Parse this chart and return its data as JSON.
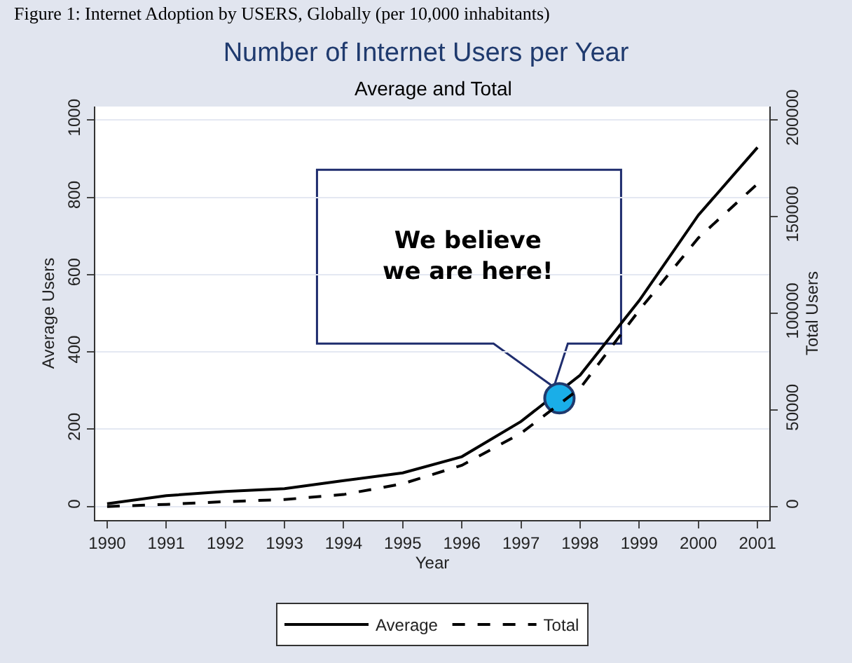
{
  "chart_data": {
    "type": "line",
    "title": "Number of Internet Users per Year",
    "subtitle": "Average and Total",
    "xlabel": "Year",
    "ylabel": "Average Users",
    "y2label": "Total Users",
    "x": [
      1990,
      1991,
      1992,
      1993,
      1994,
      1995,
      1996,
      1997,
      1998,
      1999,
      2000,
      2001
    ],
    "series": [
      {
        "name": "Average",
        "color": "#000000",
        "line_style": "solid",
        "values": [
          7,
          28,
          39,
          46,
          67,
          87,
          129,
          220,
          340,
          533,
          754,
          929
        ]
      },
      {
        "name": "Total",
        "color": "#000000",
        "line_style": "dashed",
        "axis": "y2",
        "values": [
          0,
          1100,
          2500,
          3600,
          6200,
          11800,
          21300,
          37900,
          61200,
          101600,
          139000,
          167000
        ]
      },
      {
        "type": "scatter",
        "color": "#1aaee8",
        "marker": "circle",
        "x": [
          1997.65
        ],
        "values": [
          280
        ]
      }
    ],
    "xlim": [
      1989.8,
      2001.2
    ],
    "xticks": [
      1990,
      1991,
      1992,
      1993,
      1994,
      1995,
      1996,
      1997,
      1998,
      1999,
      2000,
      2001
    ],
    "ylim": [
      -35,
      1035
    ],
    "yticks": [
      0,
      200,
      400,
      600,
      800,
      1000
    ],
    "y2lim": [
      -7000,
      207000
    ],
    "y2ticks": [
      0,
      50000,
      100000,
      150000,
      200000
    ],
    "grid": "y",
    "legend": "bottom",
    "marker": "none",
    "annotations": [
      "Figure 1: Internet Adoption by USERS, Globally (per 10,000 inhabitants)",
      "We believe\nwe are here!"
    ]
  }
}
